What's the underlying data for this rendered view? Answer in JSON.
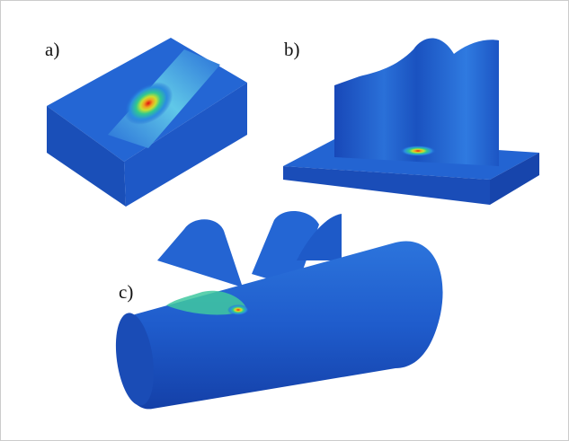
{
  "labels": [
    "a)",
    "b)",
    "c)"
  ]
}
